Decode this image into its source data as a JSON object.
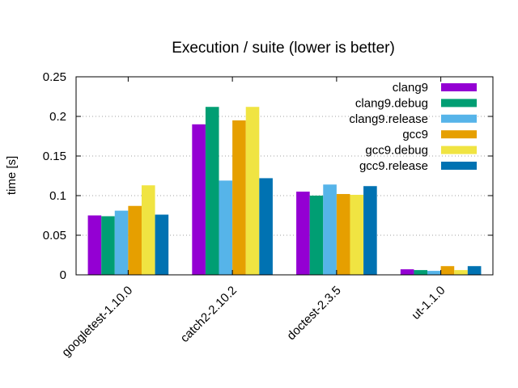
{
  "chart_data": {
    "type": "bar",
    "title": "Execution / suite (lower is better)",
    "xlabel": "",
    "ylabel": "time [s]",
    "ylim": [
      0,
      0.25
    ],
    "yticks": [
      "0",
      "0.05",
      "0.1",
      "0.15",
      "0.2",
      "0.25"
    ],
    "grid": "horizontal dotted",
    "legend_position": "top-right",
    "categories": [
      "googletest-1.10.0",
      "catch2-2.10.2",
      "doctest-2.3.5",
      "ut-1.1.0"
    ],
    "series": [
      {
        "name": "clang9",
        "color": "#9400d3",
        "values": [
          0.075,
          0.19,
          0.105,
          0.007
        ]
      },
      {
        "name": "clang9.debug",
        "color": "#009e73",
        "values": [
          0.074,
          0.212,
          0.1,
          0.006
        ]
      },
      {
        "name": "clang9.release",
        "color": "#56b4e9",
        "values": [
          0.081,
          0.119,
          0.114,
          0.005
        ]
      },
      {
        "name": "gcc9",
        "color": "#e69f00",
        "values": [
          0.087,
          0.195,
          0.102,
          0.011
        ]
      },
      {
        "name": "gcc9.debug",
        "color": "#f0e442",
        "values": [
          0.113,
          0.212,
          0.101,
          0.006
        ]
      },
      {
        "name": "gcc9.release",
        "color": "#0072b2",
        "values": [
          0.076,
          0.122,
          0.112,
          0.011
        ]
      }
    ]
  }
}
